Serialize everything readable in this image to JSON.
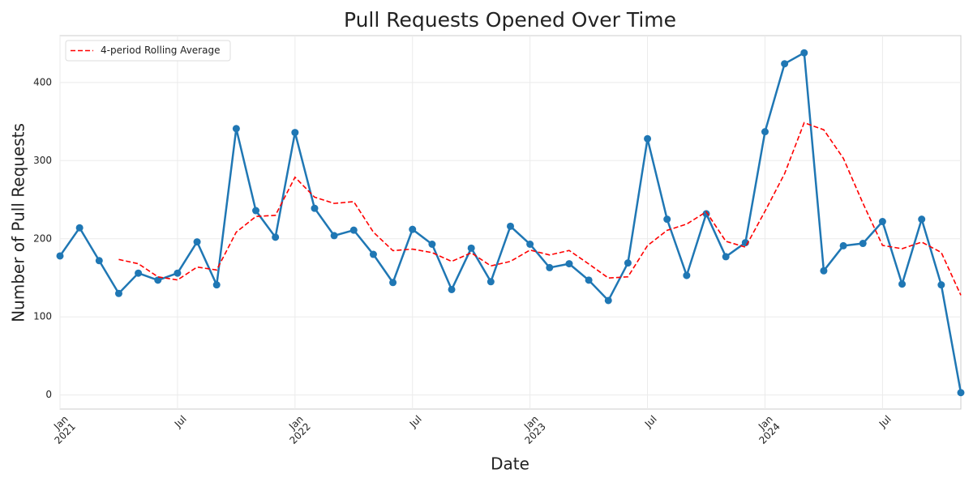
{
  "chart_data": {
    "type": "line",
    "title": "Pull Requests Opened Over Time",
    "xlabel": "Date",
    "ylabel": "Number of Pull Requests",
    "x": [
      "2021-01",
      "2021-02",
      "2021-03",
      "2021-04",
      "2021-05",
      "2021-06",
      "2021-07",
      "2021-08",
      "2021-09",
      "2021-10",
      "2021-11",
      "2021-12",
      "2022-01",
      "2022-02",
      "2022-03",
      "2022-04",
      "2022-05",
      "2022-06",
      "2022-07",
      "2022-08",
      "2022-09",
      "2022-10",
      "2022-11",
      "2022-12",
      "2023-01",
      "2023-02",
      "2023-03",
      "2023-04",
      "2023-05",
      "2023-06",
      "2023-07",
      "2023-08",
      "2023-09",
      "2023-10",
      "2023-11",
      "2023-12",
      "2024-01",
      "2024-02",
      "2024-03",
      "2024-04",
      "2024-05",
      "2024-06",
      "2024-07",
      "2024-08",
      "2024-09",
      "2024-10",
      "2024-11"
    ],
    "series": [
      {
        "color": "#1f77b4",
        "markers": true,
        "dashed": false,
        "values": [
          178,
          214,
          172,
          130,
          156,
          147,
          156,
          196,
          141,
          341,
          236,
          202,
          336,
          239,
          204,
          211,
          180,
          144,
          212,
          193,
          135,
          188,
          145,
          216,
          193,
          163,
          168,
          147,
          121,
          169,
          328,
          225,
          153,
          232,
          177,
          195,
          337,
          424,
          438,
          159,
          191,
          194,
          222,
          142,
          225,
          141,
          3
        ]
      },
      {
        "name": "4-period Rolling Average",
        "color": "#ff0000",
        "markers": false,
        "dashed": true,
        "values": [
          null,
          null,
          null,
          173.5,
          168,
          151.25,
          147.25,
          163.75,
          160,
          208.5,
          228.5,
          230,
          278.75,
          253.25,
          245.25,
          247.5,
          208.5,
          184.75,
          186.75,
          182.25,
          171,
          182,
          165.25,
          171,
          185.5,
          179.25,
          185,
          167.75,
          149.75,
          151.25,
          191.25,
          210.75,
          218.75,
          234.5,
          196.75,
          189.25,
          235.25,
          283.25,
          348.5,
          339.5,
          303,
          245.5,
          191.5,
          187.25,
          195.75,
          182.5,
          127.75
        ]
      }
    ],
    "xlim": [
      "2021-01",
      "2024-11"
    ],
    "xticks": [
      {
        "value": "2021-01",
        "label": "Jan\n2021"
      },
      {
        "value": "2021-07",
        "label": "Jul"
      },
      {
        "value": "2022-01",
        "label": "Jan\n2022"
      },
      {
        "value": "2022-07",
        "label": "Jul"
      },
      {
        "value": "2023-01",
        "label": "Jan\n2023"
      },
      {
        "value": "2023-07",
        "label": "Jul"
      },
      {
        "value": "2024-01",
        "label": "Jan\n2024"
      },
      {
        "value": "2024-07",
        "label": "Jul"
      }
    ],
    "ylim": [
      -18,
      460
    ],
    "yticks": [
      0,
      100,
      200,
      300,
      400
    ],
    "grid": true,
    "legend": "upper left"
  }
}
